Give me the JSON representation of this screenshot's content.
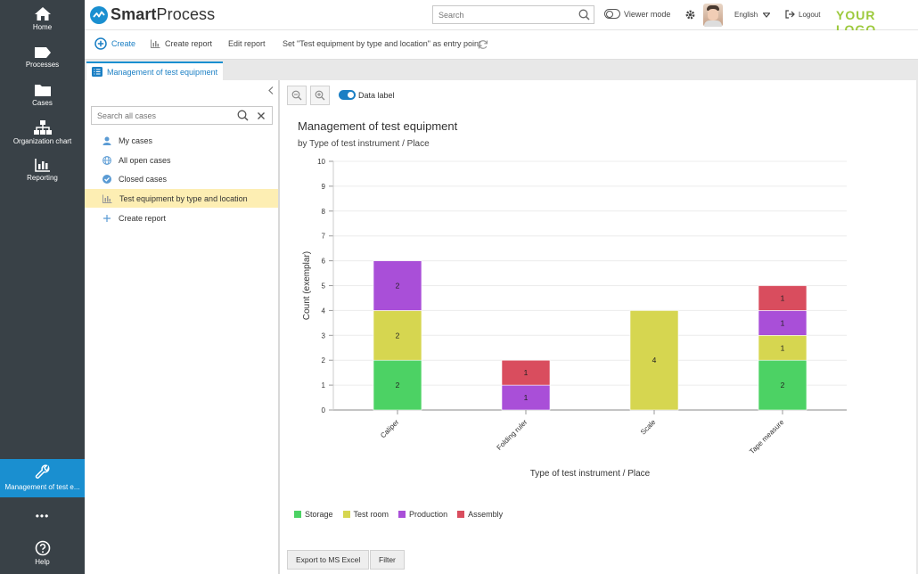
{
  "nav": {
    "items": [
      {
        "label": "Home",
        "icon": "home-icon"
      },
      {
        "label": "Processes",
        "icon": "processes-icon"
      },
      {
        "label": "Cases",
        "icon": "folder-icon"
      },
      {
        "label": "Organization chart",
        "icon": "org-chart-icon"
      },
      {
        "label": "Reporting",
        "icon": "reporting-icon"
      }
    ],
    "active_label": "Management of test e...",
    "more": "•••",
    "help": "Help"
  },
  "header": {
    "brand_smart": "Smart",
    "brand_process": "Process",
    "search_placeholder": "Search",
    "viewer_mode": "Viewer mode",
    "language": "English",
    "logout": "Logout",
    "your_logo": "YOUR LOGO"
  },
  "toolbar": {
    "create": "Create",
    "create_report": "Create report",
    "edit_report": "Edit report",
    "set_entry": "Set \"Test equipment by type and location\" as entry point"
  },
  "tab": {
    "label": "Management of test equipment"
  },
  "sidebar": {
    "search_placeholder": "Search all cases",
    "items": [
      {
        "label": "My cases",
        "icon": "user-icon"
      },
      {
        "label": "All open cases",
        "icon": "globe-icon"
      },
      {
        "label": "Closed cases",
        "icon": "check-circle-icon"
      },
      {
        "label": "Test equipment by type and location",
        "icon": "bar-chart-icon"
      },
      {
        "label": "Create report",
        "icon": "plus-icon"
      }
    ]
  },
  "main": {
    "data_label": "Data label",
    "export_button": "Export to MS Excel",
    "filter_button": "Filter"
  },
  "colors": {
    "accent": "#1a8fd0",
    "nav_bg": "#394147",
    "logo_green": "#9cc93b",
    "active_row": "#fdeeb3"
  },
  "chart_data": {
    "type": "bar",
    "stacked": true,
    "title": "Management of test equipment",
    "subtitle": "by Type of test instrument / Place",
    "xlabel": "Type of test instrument / Place",
    "ylabel": "Count (exemplar)",
    "ylim": [
      0,
      10
    ],
    "yticks": [
      0,
      1,
      2,
      3,
      4,
      5,
      6,
      7,
      8,
      9,
      10
    ],
    "categories": [
      "Caliper",
      "Folding ruler",
      "Scale",
      "Tape measure"
    ],
    "series": [
      {
        "name": "Storage",
        "color": "#4cd264",
        "values": [
          2,
          0,
          0,
          2
        ]
      },
      {
        "name": "Test room",
        "color": "#d6d650",
        "values": [
          2,
          0,
          4,
          1
        ]
      },
      {
        "name": "Production",
        "color": "#a94fd8",
        "values": [
          2,
          1,
          0,
          1
        ]
      },
      {
        "name": "Assembly",
        "color": "#d94d5e",
        "values": [
          0,
          1,
          0,
          1
        ]
      }
    ],
    "grid": true,
    "legend": "bottom-left",
    "data_labels": true
  }
}
